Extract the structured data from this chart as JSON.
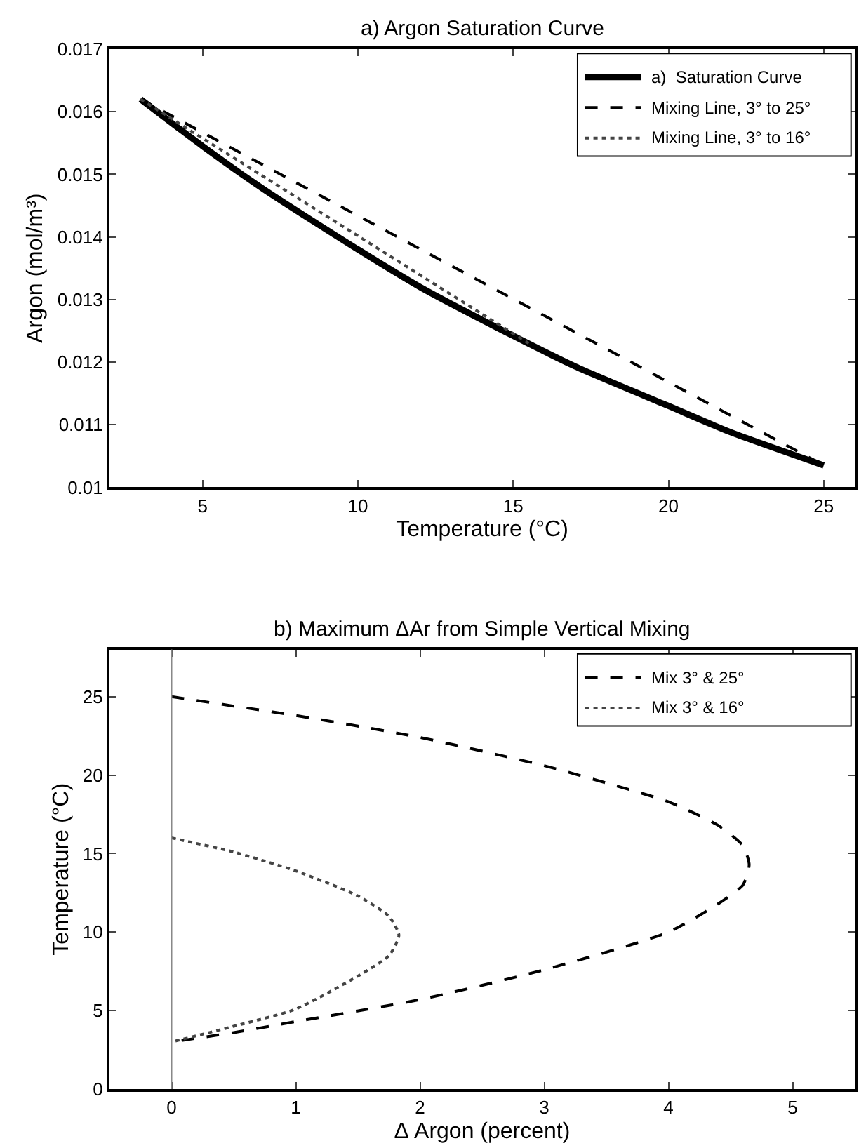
{
  "chart_data": [
    {
      "type": "line",
      "title": "a) Argon Saturation Curve",
      "xlabel": "Temperature (°C)",
      "ylabel": "Argon (mol/m³)",
      "xlim": [
        2,
        26
      ],
      "xticks": [
        5,
        10,
        15,
        20,
        25
      ],
      "ylim": [
        0.01,
        0.017
      ],
      "yticks": [
        0.01,
        0.011,
        0.012,
        0.013,
        0.014,
        0.015,
        0.016,
        0.017
      ],
      "legend": "top right",
      "series": [
        {
          "name": "a)  Saturation Curve",
          "color": "#000000",
          "line_style": "solid",
          "x": [
            3,
            5,
            7,
            10,
            12,
            15,
            17,
            20,
            22,
            25
          ],
          "values": [
            0.0162,
            0.01545,
            0.01475,
            0.0138,
            0.0132,
            0.01242,
            0.01193,
            0.0113,
            0.01088,
            0.01035
          ]
        },
        {
          "name": "Mixing Line, 3° to 25°",
          "color": "#000000",
          "line_style": "dashed",
          "x": [
            3,
            25
          ],
          "values": [
            0.0162,
            0.01035
          ]
        },
        {
          "name": "Mixing Line, 3° to 16°",
          "color": "#444444",
          "line_style": "dotted",
          "x": [
            3,
            15.5
          ],
          "values": [
            0.0162,
            0.0123
          ]
        }
      ]
    },
    {
      "type": "line",
      "title": "b) Maximum ΔAr from Simple Vertical Mixing",
      "xlabel": "Δ Argon (percent)",
      "ylabel": "Temperature (°C)",
      "xlim": [
        -0.5,
        5.5
      ],
      "xticks": [
        0,
        1,
        2,
        3,
        4,
        5
      ],
      "ylim": [
        0,
        28
      ],
      "yticks": [
        0,
        5,
        10,
        15,
        20,
        25
      ],
      "legend": "top right",
      "ref_lines": [
        {
          "axis": "x",
          "value": 0,
          "color": "#888888"
        }
      ],
      "series": [
        {
          "name": "Mix 3° & 25°",
          "color": "#000000",
          "line_style": "dashed",
          "x": [
            0,
            0.5,
            1,
            2,
            3,
            3.5,
            4,
            4.4,
            4.6,
            4.65,
            4.6,
            4.4,
            4,
            3,
            2,
            1,
            0.5,
            0
          ],
          "values": [
            25,
            24.4,
            23.8,
            22.4,
            20.6,
            19.5,
            18.3,
            16.8,
            15.5,
            14.3,
            13,
            11.8,
            10,
            7.6,
            5.7,
            4.3,
            3.6,
            3
          ]
        },
        {
          "name": "Mix 3° & 16°",
          "color": "#444444",
          "line_style": "dotted",
          "x": [
            0,
            0.5,
            1,
            1.5,
            1.75,
            1.83,
            1.75,
            1.5,
            1,
            0.5,
            0
          ],
          "values": [
            16,
            15.1,
            13.9,
            12.3,
            11,
            9.8,
            8.5,
            7.2,
            5.1,
            4,
            3
          ]
        }
      ]
    }
  ]
}
